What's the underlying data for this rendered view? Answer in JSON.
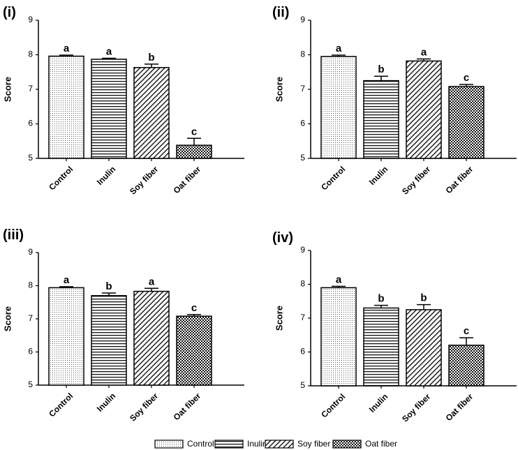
{
  "chart_data": [
    {
      "type": "bar",
      "panel_label": "(i)",
      "ylabel": "Score",
      "ylim": [
        5,
        9
      ],
      "yticks": [
        "5",
        "6",
        "7",
        "8",
        "9"
      ],
      "categories": [
        "Control",
        "Inulin",
        "Soy fiber",
        "Oat fiber"
      ],
      "values": [
        7.96,
        7.87,
        7.63,
        5.38
      ],
      "errors": [
        0.03,
        0.03,
        0.1,
        0.2
      ],
      "annotations": [
        "a",
        "a",
        "b",
        "c"
      ]
    },
    {
      "type": "bar",
      "panel_label": "(ii)",
      "ylabel": "Score",
      "ylim": [
        5,
        9
      ],
      "yticks": [
        "5",
        "6",
        "7",
        "8",
        "9"
      ],
      "categories": [
        "Control",
        "Inulin",
        "Soy fiber",
        "Oat fiber"
      ],
      "values": [
        7.95,
        7.25,
        7.82,
        7.08
      ],
      "errors": [
        0.04,
        0.13,
        0.06,
        0.06
      ],
      "annotations": [
        "a",
        "b",
        "a",
        "c"
      ]
    },
    {
      "type": "bar",
      "panel_label": "(iii)",
      "ylabel": "Score",
      "ylim": [
        5,
        9
      ],
      "yticks": [
        "5",
        "6",
        "7",
        "8",
        "9"
      ],
      "categories": [
        "Control",
        "Inulin",
        "Soy fiber",
        "Oat fiber"
      ],
      "values": [
        7.94,
        7.7,
        7.83,
        7.08
      ],
      "errors": [
        0.03,
        0.08,
        0.09,
        0.05
      ],
      "annotations": [
        "a",
        "b",
        "a",
        "c"
      ]
    },
    {
      "type": "bar",
      "panel_label": "(iv)",
      "ylabel": "Score",
      "ylim": [
        5,
        9
      ],
      "yticks": [
        "5",
        "6",
        "7",
        "8",
        "9"
      ],
      "categories": [
        "Control",
        "Inulin",
        "Soy fiber",
        "Oat fiber"
      ],
      "values": [
        7.9,
        7.3,
        7.25,
        6.2
      ],
      "errors": [
        0.04,
        0.08,
        0.15,
        0.22
      ],
      "annotations": [
        "a",
        "b",
        "b",
        "c"
      ]
    }
  ],
  "legend": {
    "entries": [
      "Control",
      "Inulin",
      "Soy fiber",
      "Oat fiber"
    ],
    "patterns": [
      "dots",
      "horizontal-lines",
      "diagonal-lines",
      "checker"
    ]
  },
  "colors": {
    "ink": "#000000",
    "background": "#ffffff"
  }
}
